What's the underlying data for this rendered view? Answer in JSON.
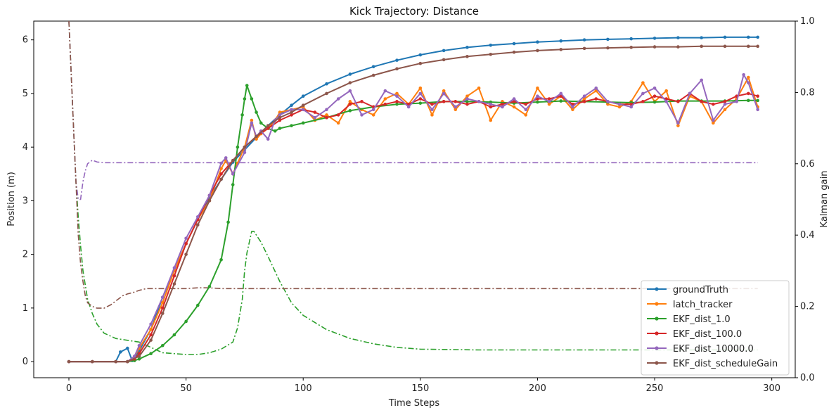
{
  "chart_data": {
    "type": "line",
    "title": "Kick Trajectory: Distance",
    "xlabel": "Time Steps",
    "ylabel": "Position (m)",
    "y2label": "Kalman gain",
    "xlim": [
      -15,
      310
    ],
    "ylim": [
      -0.3,
      6.35
    ],
    "y2lim": [
      0.0,
      1.0
    ],
    "xticks": [
      0,
      50,
      100,
      150,
      200,
      250,
      300
    ],
    "yticks": [
      0,
      1,
      2,
      3,
      4,
      5,
      6
    ],
    "y2ticks": [
      0.0,
      0.2,
      0.4,
      0.6,
      0.8,
      1.0
    ],
    "grid": false,
    "legend_position": "lower-right",
    "series": [
      {
        "name": "groundTruth",
        "color": "#1f77b4",
        "axis": "left",
        "style": "marker-line",
        "x": [
          0,
          10,
          20,
          22,
          25,
          27,
          30,
          35,
          40,
          45,
          50,
          55,
          60,
          65,
          70,
          75,
          80,
          85,
          90,
          95,
          100,
          110,
          120,
          130,
          140,
          150,
          160,
          170,
          180,
          190,
          200,
          210,
          220,
          230,
          240,
          250,
          260,
          270,
          280,
          290,
          294
        ],
        "y": [
          0,
          0,
          0,
          0.18,
          0.25,
          0.02,
          0.2,
          0.6,
          1.2,
          1.7,
          2.2,
          2.65,
          3.05,
          3.4,
          3.72,
          3.95,
          4.18,
          4.4,
          4.6,
          4.78,
          4.95,
          5.18,
          5.36,
          5.5,
          5.62,
          5.72,
          5.8,
          5.86,
          5.9,
          5.93,
          5.96,
          5.98,
          6.0,
          6.01,
          6.02,
          6.03,
          6.04,
          6.04,
          6.05,
          6.05,
          6.05
        ]
      },
      {
        "name": "latch_tracker",
        "color": "#ff7f0e",
        "axis": "left",
        "style": "marker-line",
        "x": [
          0,
          10,
          20,
          25,
          28,
          30,
          35,
          40,
          45,
          50,
          55,
          60,
          65,
          67,
          70,
          72,
          75,
          78,
          80,
          82,
          85,
          88,
          90,
          95,
          100,
          105,
          110,
          115,
          120,
          125,
          130,
          135,
          140,
          145,
          150,
          155,
          160,
          165,
          170,
          175,
          180,
          185,
          190,
          195,
          200,
          205,
          210,
          215,
          220,
          225,
          230,
          235,
          240,
          245,
          250,
          255,
          260,
          265,
          270,
          275,
          280,
          285,
          290,
          294
        ],
        "y": [
          0,
          0,
          0,
          0,
          0.1,
          0.25,
          0.6,
          1.1,
          1.7,
          2.2,
          2.65,
          3.0,
          3.6,
          3.75,
          3.5,
          3.7,
          4.0,
          4.5,
          4.15,
          4.25,
          4.35,
          4.5,
          4.65,
          4.7,
          4.75,
          4.5,
          4.6,
          4.45,
          4.85,
          4.7,
          4.6,
          4.9,
          5.0,
          4.8,
          5.1,
          4.6,
          5.05,
          4.7,
          4.95,
          5.1,
          4.5,
          4.85,
          4.75,
          4.6,
          5.1,
          4.8,
          4.95,
          4.7,
          4.9,
          5.05,
          4.8,
          4.75,
          4.85,
          5.2,
          4.85,
          5.05,
          4.4,
          4.95,
          4.85,
          4.45,
          4.7,
          4.9,
          5.3,
          4.75
        ]
      },
      {
        "name": "EKF_dist_1.0",
        "color": "#2ca02c",
        "axis": "left",
        "style": "marker-line",
        "x": [
          0,
          10,
          20,
          25,
          28,
          30,
          35,
          40,
          45,
          50,
          55,
          60,
          65,
          68,
          70,
          72,
          74,
          75,
          76,
          78,
          80,
          82,
          85,
          88,
          90,
          95,
          100,
          110,
          120,
          130,
          140,
          150,
          160,
          170,
          180,
          190,
          200,
          210,
          220,
          230,
          240,
          250,
          260,
          270,
          280,
          290,
          294
        ],
        "y": [
          0,
          0,
          0,
          0,
          0.02,
          0.05,
          0.15,
          0.3,
          0.5,
          0.75,
          1.05,
          1.4,
          1.9,
          2.6,
          3.3,
          4.0,
          4.6,
          4.9,
          5.15,
          4.9,
          4.65,
          4.45,
          4.35,
          4.3,
          4.35,
          4.4,
          4.45,
          4.55,
          4.68,
          4.75,
          4.8,
          4.82,
          4.85,
          4.85,
          4.84,
          4.82,
          4.84,
          4.86,
          4.85,
          4.84,
          4.83,
          4.84,
          4.86,
          4.86,
          4.86,
          4.87,
          4.87
        ]
      },
      {
        "name": "EKF_dist_100.0",
        "color": "#d62728",
        "axis": "left",
        "style": "marker-line",
        "x": [
          0,
          10,
          20,
          25,
          28,
          30,
          35,
          40,
          45,
          50,
          55,
          60,
          65,
          70,
          75,
          80,
          85,
          90,
          95,
          100,
          105,
          110,
          115,
          120,
          125,
          130,
          135,
          140,
          145,
          150,
          155,
          160,
          165,
          170,
          175,
          180,
          185,
          190,
          195,
          200,
          205,
          210,
          215,
          220,
          225,
          230,
          235,
          240,
          245,
          250,
          255,
          260,
          265,
          270,
          275,
          280,
          285,
          290,
          294
        ],
        "y": [
          0,
          0,
          0,
          0,
          0.05,
          0.15,
          0.5,
          1.0,
          1.6,
          2.2,
          2.65,
          3.1,
          3.5,
          3.75,
          4.0,
          4.2,
          4.35,
          4.5,
          4.6,
          4.7,
          4.65,
          4.55,
          4.6,
          4.8,
          4.85,
          4.75,
          4.8,
          4.85,
          4.8,
          4.9,
          4.8,
          4.85,
          4.85,
          4.8,
          4.85,
          4.75,
          4.8,
          4.85,
          4.8,
          4.9,
          4.9,
          4.95,
          4.8,
          4.85,
          4.9,
          4.85,
          4.8,
          4.8,
          4.85,
          4.95,
          4.9,
          4.85,
          5.0,
          4.85,
          4.8,
          4.85,
          4.95,
          5.0,
          4.95
        ]
      },
      {
        "name": "EKF_dist_10000.0",
        "color": "#9467bd",
        "axis": "left",
        "style": "marker-line",
        "x": [
          0,
          10,
          20,
          25,
          28,
          30,
          35,
          40,
          45,
          50,
          55,
          60,
          65,
          67,
          70,
          75,
          78,
          80,
          82,
          85,
          88,
          90,
          95,
          100,
          105,
          110,
          115,
          120,
          125,
          130,
          135,
          140,
          145,
          150,
          155,
          160,
          165,
          170,
          175,
          180,
          185,
          190,
          195,
          200,
          205,
          210,
          215,
          220,
          225,
          230,
          235,
          240,
          245,
          250,
          255,
          260,
          265,
          270,
          275,
          280,
          285,
          288,
          290,
          294
        ],
        "y": [
          0,
          0,
          0,
          0,
          0.1,
          0.3,
          0.7,
          1.2,
          1.75,
          2.3,
          2.7,
          3.1,
          3.7,
          3.8,
          3.5,
          3.9,
          4.45,
          4.2,
          4.3,
          4.15,
          4.5,
          4.6,
          4.7,
          4.7,
          4.55,
          4.7,
          4.9,
          5.05,
          4.6,
          4.7,
          5.05,
          4.95,
          4.75,
          5.0,
          4.7,
          5.0,
          4.75,
          4.9,
          4.85,
          4.8,
          4.75,
          4.9,
          4.7,
          4.95,
          4.85,
          5.0,
          4.75,
          4.95,
          5.1,
          4.85,
          4.8,
          4.75,
          5.0,
          5.1,
          4.85,
          4.45,
          5.0,
          5.25,
          4.5,
          4.8,
          4.85,
          5.35,
          5.2,
          4.7
        ]
      },
      {
        "name": "EKF_dist_scheduleGain",
        "color": "#8c564b",
        "axis": "left",
        "style": "marker-line",
        "x": [
          0,
          10,
          20,
          25,
          30,
          35,
          40,
          45,
          50,
          55,
          60,
          65,
          70,
          75,
          80,
          85,
          90,
          95,
          100,
          110,
          120,
          130,
          140,
          150,
          160,
          170,
          180,
          190,
          200,
          210,
          220,
          230,
          240,
          250,
          260,
          270,
          280,
          290,
          294
        ],
        "y": [
          0,
          0,
          0,
          0,
          0.1,
          0.4,
          0.9,
          1.45,
          2.0,
          2.55,
          3.0,
          3.4,
          3.75,
          4.0,
          4.2,
          4.4,
          4.55,
          4.65,
          4.78,
          5.0,
          5.2,
          5.34,
          5.46,
          5.56,
          5.63,
          5.69,
          5.73,
          5.77,
          5.8,
          5.82,
          5.84,
          5.85,
          5.86,
          5.87,
          5.87,
          5.88,
          5.88,
          5.88,
          5.88
        ]
      },
      {
        "name": "",
        "color": "#2ca02c",
        "axis": "right",
        "style": "dashdot",
        "x": [
          0,
          1,
          2,
          3,
          4,
          5,
          6,
          7,
          8,
          10,
          12,
          15,
          20,
          25,
          30,
          40,
          50,
          55,
          60,
          65,
          70,
          72,
          74,
          75,
          76,
          77,
          78,
          79,
          80,
          82,
          85,
          90,
          95,
          100,
          110,
          120,
          130,
          140,
          150,
          175,
          200,
          250,
          275,
          294
        ],
        "y": [
          1.0,
          0.85,
          0.7,
          0.55,
          0.45,
          0.37,
          0.3,
          0.26,
          0.22,
          0.18,
          0.15,
          0.125,
          0.11,
          0.105,
          0.1,
          0.07,
          0.065,
          0.065,
          0.07,
          0.08,
          0.1,
          0.14,
          0.22,
          0.3,
          0.35,
          0.38,
          0.41,
          0.41,
          0.4,
          0.38,
          0.34,
          0.27,
          0.21,
          0.175,
          0.135,
          0.11,
          0.095,
          0.085,
          0.08,
          0.078,
          0.078,
          0.078,
          0.078,
          0.078
        ]
      },
      {
        "name": "",
        "color": "#9467bd",
        "axis": "right",
        "style": "dashdot",
        "x": [
          0,
          1,
          2,
          3,
          4,
          5,
          6,
          7,
          8,
          10,
          12,
          15,
          20,
          50,
          100,
          150,
          200,
          250,
          294
        ],
        "y": [
          1.0,
          0.85,
          0.7,
          0.55,
          0.5,
          0.5,
          0.55,
          0.58,
          0.6,
          0.61,
          0.605,
          0.603,
          0.603,
          0.603,
          0.603,
          0.603,
          0.603,
          0.603,
          0.603
        ]
      },
      {
        "name": "",
        "color": "#8c564b",
        "axis": "right",
        "style": "dashdot",
        "x": [
          0,
          1,
          2,
          3,
          4,
          5,
          6,
          7,
          8,
          10,
          12,
          15,
          18,
          20,
          23,
          25,
          28,
          30,
          33,
          35,
          40,
          50,
          55,
          60,
          65,
          70,
          80,
          100,
          150,
          200,
          250,
          294
        ],
        "y": [
          1.0,
          0.85,
          0.7,
          0.55,
          0.4,
          0.32,
          0.27,
          0.23,
          0.21,
          0.2,
          0.195,
          0.195,
          0.205,
          0.215,
          0.23,
          0.235,
          0.24,
          0.245,
          0.25,
          0.25,
          0.25,
          0.25,
          0.252,
          0.252,
          0.25,
          0.25,
          0.25,
          0.25,
          0.25,
          0.25,
          0.25,
          0.25
        ]
      }
    ]
  }
}
